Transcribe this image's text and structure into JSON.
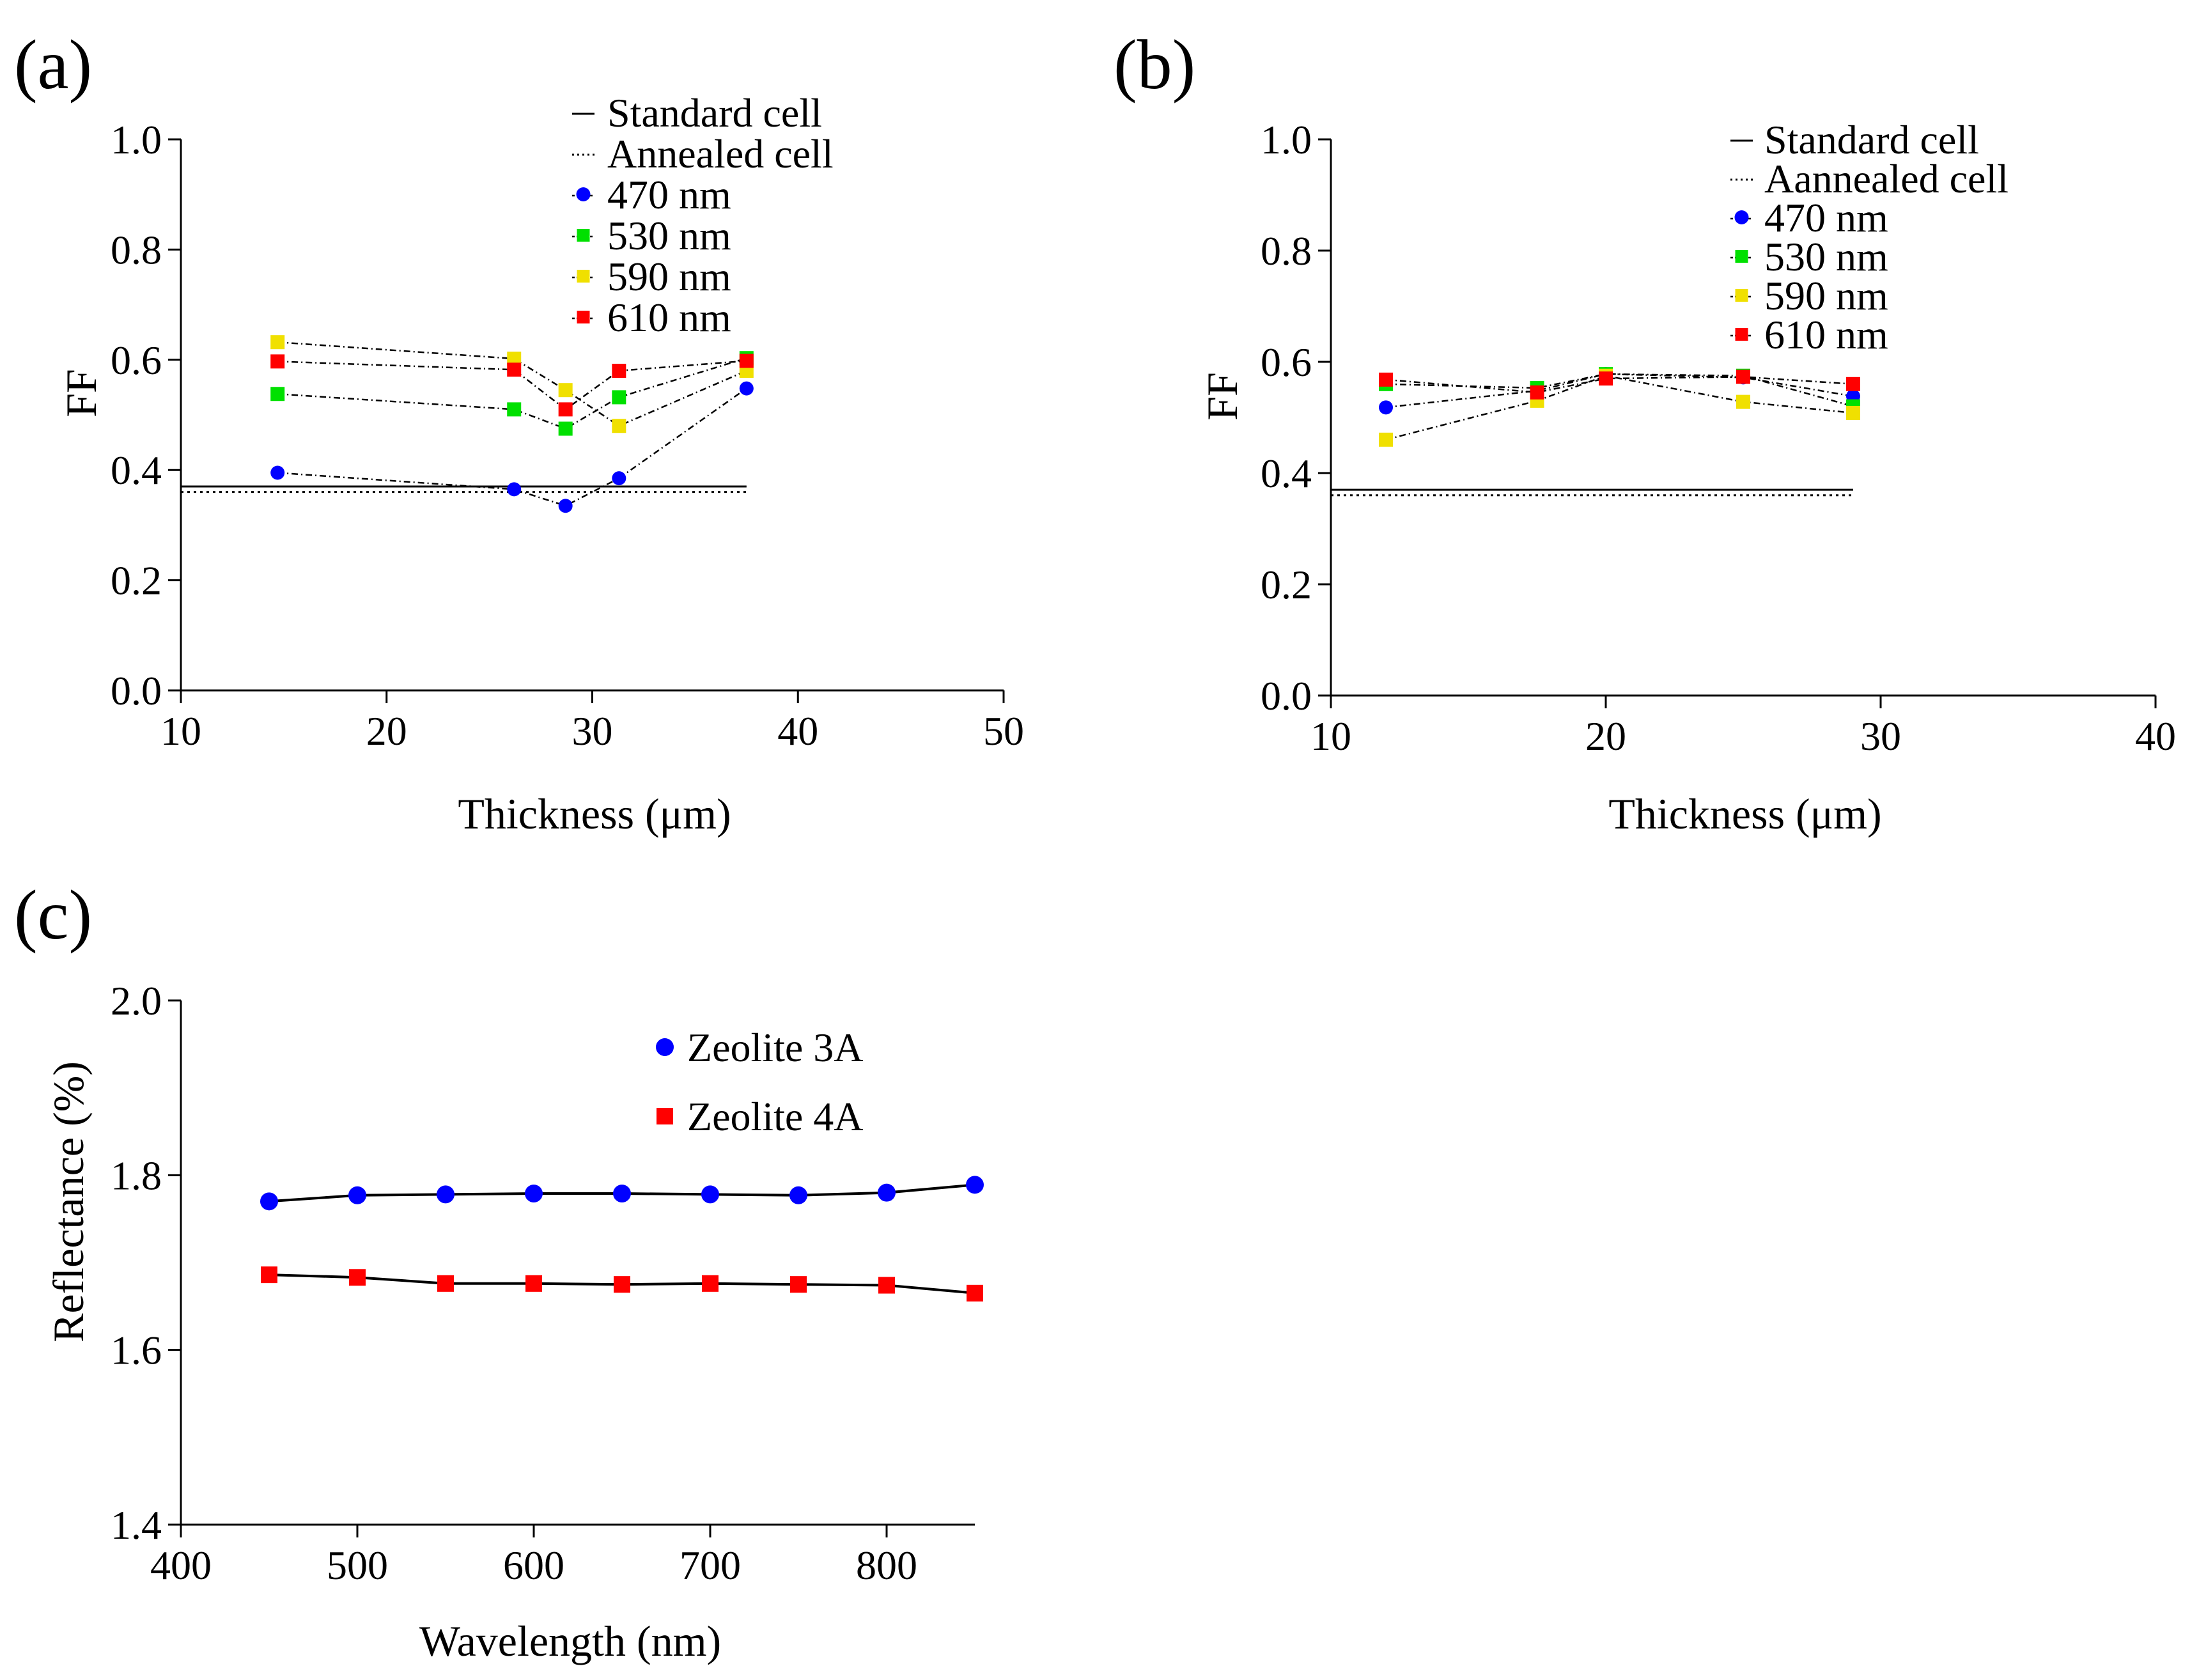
{
  "chart_data": [
    {
      "panel": "(a)",
      "type": "line",
      "title": "",
      "xlabel": "Thickness (μm)",
      "ylabel": "FF",
      "xlim": [
        10,
        50
      ],
      "ylim": [
        0.0,
        1.0
      ],
      "xticks": [
        "10",
        "20",
        "30",
        "40",
        "50"
      ],
      "yticks": [
        "0.0",
        "0.2",
        "0.4",
        "0.6",
        "0.8",
        "1.0"
      ],
      "reference_lines": [
        {
          "name": "Standard  cell",
          "style": "solid",
          "y": 0.37,
          "x_range": [
            10,
            37.5
          ]
        },
        {
          "name": "Annealed cell",
          "style": "dotted",
          "y": 0.36,
          "x_range": [
            10,
            37.5
          ]
        }
      ],
      "x": [
        14.7,
        26.2,
        28.7,
        31.3,
        37.5
      ],
      "series": [
        {
          "name": "470 nm",
          "color": "#0000ff",
          "marker": "circle",
          "values": [
            0.395,
            0.365,
            0.335,
            0.385,
            0.548
          ]
        },
        {
          "name": "530 nm",
          "color": "#00e000",
          "marker": "square",
          "values": [
            0.538,
            0.51,
            0.475,
            0.532,
            0.603
          ]
        },
        {
          "name": "590 nm",
          "color": "#f0e000",
          "marker": "square",
          "values": [
            0.632,
            0.602,
            0.545,
            0.48,
            0.58
          ]
        },
        {
          "name": "610 nm",
          "color": "#ff0000",
          "marker": "square",
          "values": [
            0.597,
            0.582,
            0.51,
            0.58,
            0.598
          ]
        }
      ],
      "legend_position": "top-right"
    },
    {
      "panel": "(b)",
      "type": "line",
      "title": "",
      "xlabel": "Thickness (μm)",
      "ylabel": "FF",
      "xlim": [
        10,
        40
      ],
      "ylim": [
        0.0,
        1.0
      ],
      "xticks": [
        "10",
        "20",
        "30",
        "40"
      ],
      "yticks": [
        "0.0",
        "0.2",
        "0.4",
        "0.6",
        "0.8",
        "1.0"
      ],
      "reference_lines": [
        {
          "name": "Standard  cell",
          "style": "solid",
          "y": 0.37,
          "x_range": [
            10,
            29
          ]
        },
        {
          "name": "Aannealed cell",
          "style": "dotted",
          "y": 0.36,
          "x_range": [
            10,
            29
          ]
        }
      ],
      "x": [
        12,
        17.5,
        20,
        25,
        29
      ],
      "series": [
        {
          "name": "470 nm",
          "color": "#0000ff",
          "marker": "circle",
          "values": [
            0.518,
            0.548,
            0.578,
            0.572,
            0.538
          ]
        },
        {
          "name": "530 nm",
          "color": "#00e000",
          "marker": "square",
          "values": [
            0.56,
            0.553,
            0.578,
            0.575,
            0.52
          ]
        },
        {
          "name": "590 nm",
          "color": "#f0e000",
          "marker": "square",
          "values": [
            0.46,
            0.53,
            0.575,
            0.528,
            0.508
          ]
        },
        {
          "name": "610 nm",
          "color": "#ff0000",
          "marker": "square",
          "values": [
            0.568,
            0.545,
            0.57,
            0.573,
            0.56
          ]
        }
      ],
      "legend_position": "top-right"
    },
    {
      "panel": "(c)",
      "type": "line",
      "title": "",
      "xlabel": "Wavelength (nm)",
      "ylabel": "Reflectance (%)",
      "xlim": [
        400,
        850
      ],
      "ylim": [
        1.4,
        2.0
      ],
      "xticks": [
        "400",
        "500",
        "600",
        "700",
        "800"
      ],
      "yticks": [
        "1.4",
        "1.6",
        "1.8",
        "2.0"
      ],
      "x": [
        450,
        500,
        550,
        600,
        650,
        700,
        750,
        800,
        850
      ],
      "series": [
        {
          "name": "Zeolite 3A",
          "color": "#0000ff",
          "marker": "circle",
          "values": [
            1.77,
            1.777,
            1.778,
            1.779,
            1.779,
            1.778,
            1.777,
            1.78,
            1.789
          ]
        },
        {
          "name": "Zeolite 4A",
          "color": "#ff0000",
          "marker": "square",
          "values": [
            1.686,
            1.683,
            1.676,
            1.676,
            1.675,
            1.676,
            1.675,
            1.674,
            1.665
          ]
        }
      ],
      "legend_position": "top-right"
    }
  ]
}
